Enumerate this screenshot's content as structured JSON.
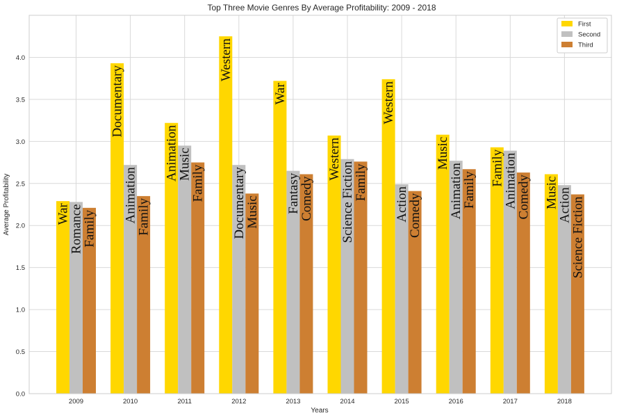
{
  "chart_data": {
    "type": "bar",
    "title": "Top Three Movie Genres By Average Profitability: 2009 - 2018",
    "xlabel": "Years",
    "ylabel": "Average Profitability",
    "ylim": [
      0,
      4.5
    ],
    "yticks": [
      0.0,
      0.5,
      1.0,
      1.5,
      2.0,
      2.5,
      3.0,
      3.5,
      4.0
    ],
    "ytick_labels": [
      "0.0",
      "0.5",
      "1.0",
      "1.5",
      "2.0",
      "2.5",
      "3.0",
      "3.5",
      "4.0"
    ],
    "grid": true,
    "legend_position": "top-right",
    "categories": [
      "2009",
      "2010",
      "2011",
      "2012",
      "2013",
      "2014",
      "2015",
      "2016",
      "2017",
      "2018"
    ],
    "series": [
      {
        "name": "First",
        "color": "#FFD700",
        "values": [
          2.29,
          3.93,
          3.22,
          4.25,
          3.72,
          3.07,
          3.74,
          3.08,
          2.93,
          2.61
        ],
        "labels": [
          "War",
          "Documentary",
          "Animation",
          "Western",
          "War",
          "Western",
          "Western",
          "Music",
          "Family",
          "Music"
        ]
      },
      {
        "name": "Second",
        "color": "#C0C0C0",
        "values": [
          2.28,
          2.72,
          2.95,
          2.72,
          2.65,
          2.79,
          2.49,
          2.77,
          2.89,
          2.48
        ],
        "labels": [
          "Romance",
          "Animation",
          "Music",
          "Documentary",
          "Fantasy",
          "Science Fiction",
          "Action",
          "Animation",
          "Animation",
          "Action"
        ]
      },
      {
        "name": "Third",
        "color": "#CD7F32",
        "values": [
          2.21,
          2.35,
          2.75,
          2.38,
          2.61,
          2.76,
          2.41,
          2.67,
          2.63,
          2.37
        ],
        "labels": [
          "Family",
          "Family",
          "Family",
          "Music",
          "Comedy",
          "Family",
          "Comedy",
          "Family",
          "Comedy",
          "Science Fiction"
        ]
      }
    ]
  }
}
